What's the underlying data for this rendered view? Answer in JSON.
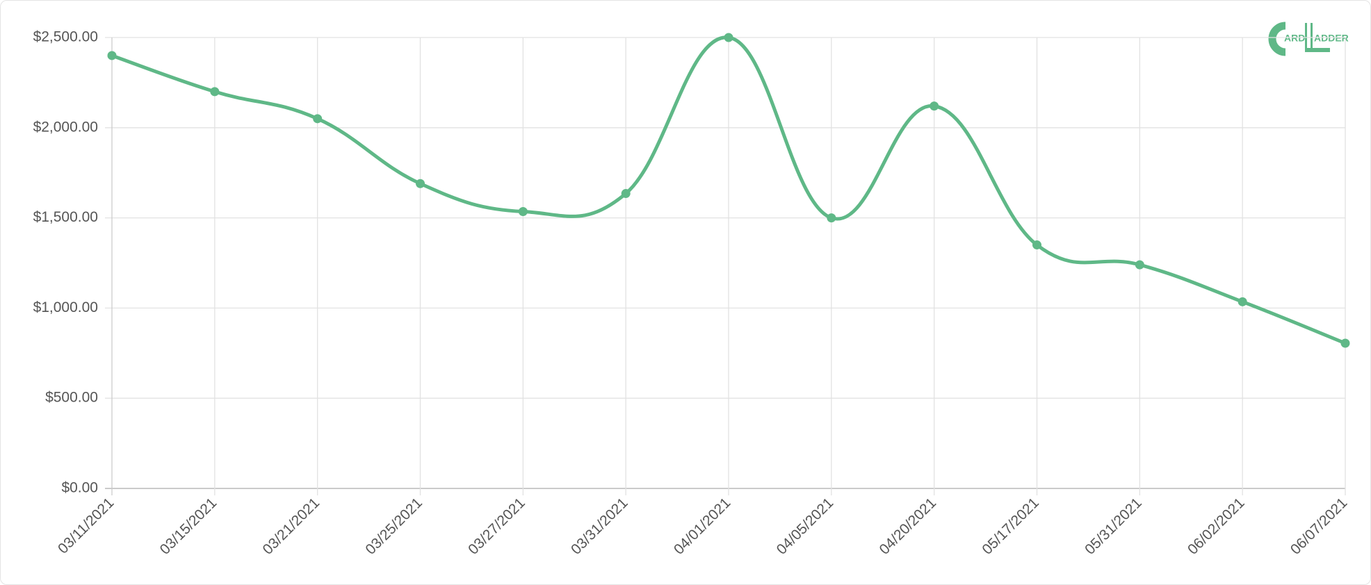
{
  "chart_data": {
    "type": "line",
    "logo": {
      "left": "ARD",
      "right": "ADDER"
    },
    "categories": [
      "03/11/2021",
      "03/15/2021",
      "03/21/2021",
      "03/25/2021",
      "03/27/2021",
      "03/31/2021",
      "04/01/2021",
      "04/05/2021",
      "04/20/2021",
      "05/17/2021",
      "05/31/2021",
      "06/02/2021",
      "06/07/2021"
    ],
    "values": [
      2400,
      2200,
      2050,
      1690,
      1535,
      1635,
      2500,
      1500,
      2120,
      1350,
      1240,
      1035,
      805
    ],
    "color": "#5fb887",
    "ylim": [
      0,
      2500
    ],
    "yticks": [
      {
        "value": 0,
        "label": "$0.00"
      },
      {
        "value": 500,
        "label": "$500.00"
      },
      {
        "value": 1000,
        "label": "$1,000.00"
      },
      {
        "value": 1500,
        "label": "$1,500.00"
      },
      {
        "value": 2000,
        "label": "$2,000.00"
      },
      {
        "value": 2500,
        "label": "$2,500.00"
      }
    ],
    "grid": true
  }
}
